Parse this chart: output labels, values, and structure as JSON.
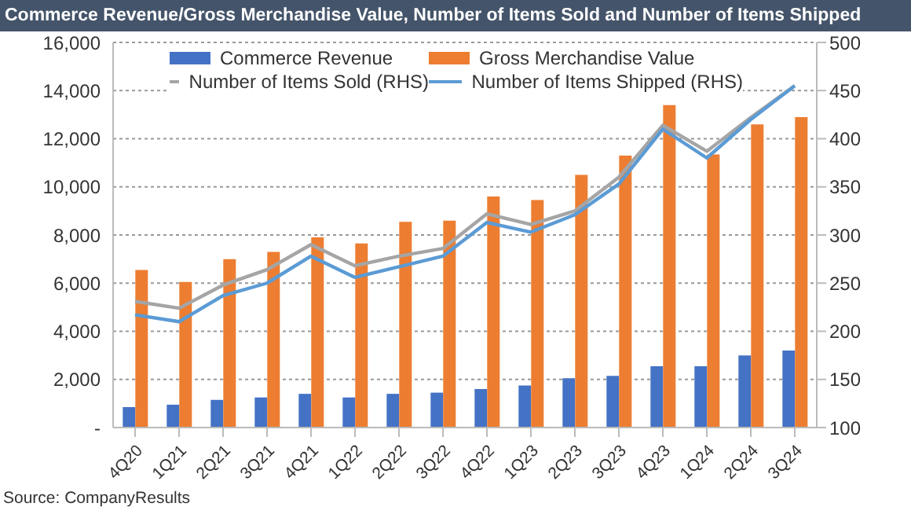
{
  "chart_data": {
    "type": "bar",
    "title": "Commerce Revenue/Gross Merchandise Value, Number of Items Sold and Number of Items Shipped",
    "categories": [
      "4Q20",
      "1Q21",
      "2Q21",
      "3Q21",
      "4Q21",
      "1Q22",
      "2Q22",
      "3Q22",
      "4Q22",
      "1Q23",
      "2Q23",
      "3Q23",
      "4Q23",
      "1Q24",
      "2Q24",
      "3Q24"
    ],
    "series": [
      {
        "name": "Commerce Revenue",
        "color": "#4472c4",
        "values": [
          850,
          950,
          1150,
          1250,
          1400,
          1250,
          1400,
          1450,
          1600,
          1750,
          2050,
          2150,
          2550,
          2550,
          3000,
          3200
        ]
      },
      {
        "name": "Gross Merchandise Value",
        "color": "#ed7d31",
        "values": [
          6550,
          6050,
          7000,
          7300,
          7900,
          7650,
          8550,
          8600,
          9600,
          9450,
          10500,
          11300,
          13400,
          11350,
          12600,
          12900
        ]
      },
      {
        "name": "Number of Items Sold (RHS)",
        "type": "line",
        "axis": "y2",
        "color": "#a5a5a5",
        "values": [
          231,
          224,
          248,
          264,
          290,
          268,
          278,
          286,
          322,
          311,
          325,
          360,
          414,
          387,
          422,
          455
        ]
      },
      {
        "name": "Number of Items Shipped (RHS)",
        "type": "line",
        "axis": "y2",
        "color": "#5b9bd5",
        "values": [
          217,
          210,
          237,
          250,
          278,
          256,
          267,
          278,
          313,
          303,
          321,
          353,
          410,
          380,
          420,
          455
        ]
      }
    ],
    "ylim": [
      0,
      16000
    ],
    "yticks": [
      {
        "value": 0,
        "label": "-"
      },
      {
        "value": 2000,
        "label": "2,000"
      },
      {
        "value": 4000,
        "label": "4,000"
      },
      {
        "value": 6000,
        "label": "6,000"
      },
      {
        "value": 8000,
        "label": "8,000"
      },
      {
        "value": 10000,
        "label": "10,000"
      },
      {
        "value": 12000,
        "label": "12,000"
      },
      {
        "value": 14000,
        "label": "14,000"
      },
      {
        "value": 16000,
        "label": "16,000"
      }
    ],
    "y2lim": [
      100,
      500
    ],
    "y2ticks": [
      100,
      150,
      200,
      250,
      300,
      350,
      400,
      450,
      500
    ],
    "grid": "y",
    "legend": "top left",
    "marker": "none",
    "line_style": "solid",
    "annotations": [
      "Source: CompanyResults"
    ]
  }
}
